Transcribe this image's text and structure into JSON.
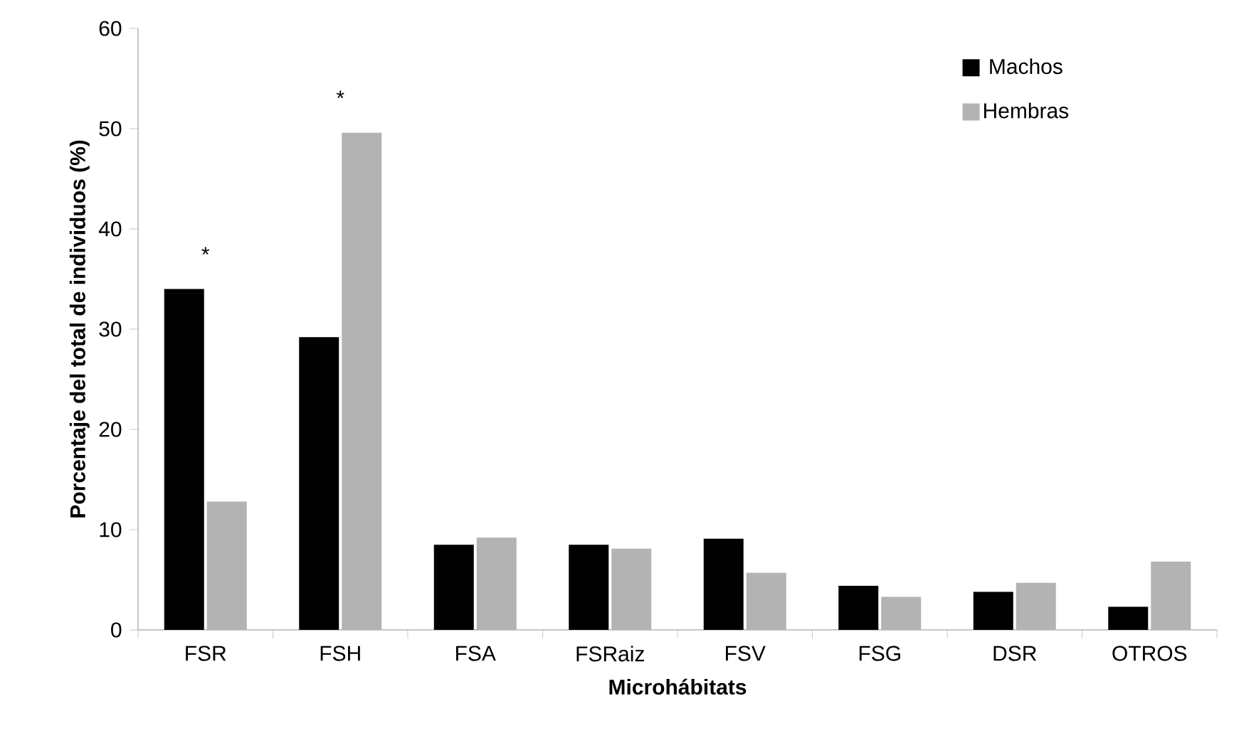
{
  "chart_data": {
    "type": "bar",
    "xlabel": "Microhábitats",
    "ylabel": "Porcentaje del total de individuos (%)",
    "categories": [
      "FSR",
      "FSH",
      "FSA",
      "FSRaiz",
      "FSV",
      "FSG",
      "DSR",
      "OTROS"
    ],
    "series": [
      {
        "name": "Machos",
        "color": "#000000",
        "values": [
          34.0,
          29.2,
          8.5,
          8.5,
          9.1,
          4.4,
          3.8,
          2.3
        ]
      },
      {
        "name": "Hembras",
        "color": "#b3b3b3",
        "values": [
          12.8,
          49.6,
          9.2,
          8.1,
          5.7,
          3.3,
          4.7,
          6.8
        ]
      }
    ],
    "annotations": [
      "*",
      "*"
    ],
    "ylim": [
      0,
      60
    ],
    "yticks": [
      0,
      10,
      20,
      30,
      40,
      50,
      60
    ],
    "grid": false,
    "legend": "top right"
  }
}
